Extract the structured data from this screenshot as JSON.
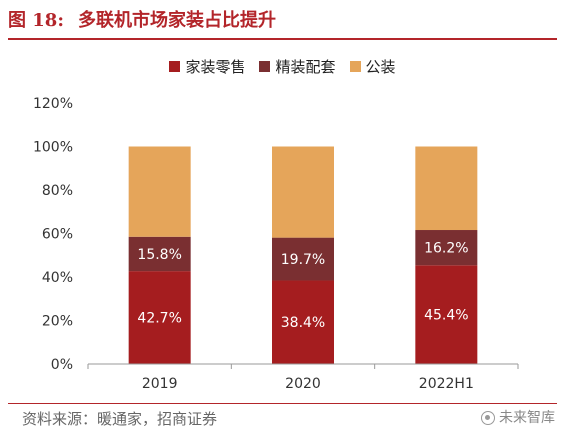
{
  "figure": {
    "number": "图 18:",
    "title": "多联机市场家装占比提升"
  },
  "source": "资料来源：暖通家，招商证券",
  "watermark": "未来智库",
  "chart_data": {
    "type": "bar",
    "stacked": true,
    "categories": [
      "2019",
      "2020",
      "2022H1"
    ],
    "series": [
      {
        "name": "家装零售",
        "color": "#a51d1f",
        "values": [
          42.7,
          38.4,
          45.4
        ],
        "labels": [
          "42.7%",
          "38.4%",
          "45.4%"
        ]
      },
      {
        "name": "精装配套",
        "color": "#7a2f31",
        "values": [
          15.8,
          19.7,
          16.2
        ],
        "labels": [
          "15.8%",
          "19.7%",
          "16.2%"
        ]
      },
      {
        "name": "公装",
        "color": "#e5a55a",
        "values": [
          41.5,
          41.9,
          38.4
        ],
        "labels": [
          "",
          "",
          ""
        ]
      }
    ],
    "ylim": [
      0,
      120
    ],
    "yticks": [
      0,
      20,
      40,
      60,
      80,
      100,
      120
    ],
    "ytick_labels": [
      "0%",
      "20%",
      "40%",
      "60%",
      "80%",
      "100%",
      "120%"
    ],
    "legend_position": "top",
    "grid": false
  }
}
